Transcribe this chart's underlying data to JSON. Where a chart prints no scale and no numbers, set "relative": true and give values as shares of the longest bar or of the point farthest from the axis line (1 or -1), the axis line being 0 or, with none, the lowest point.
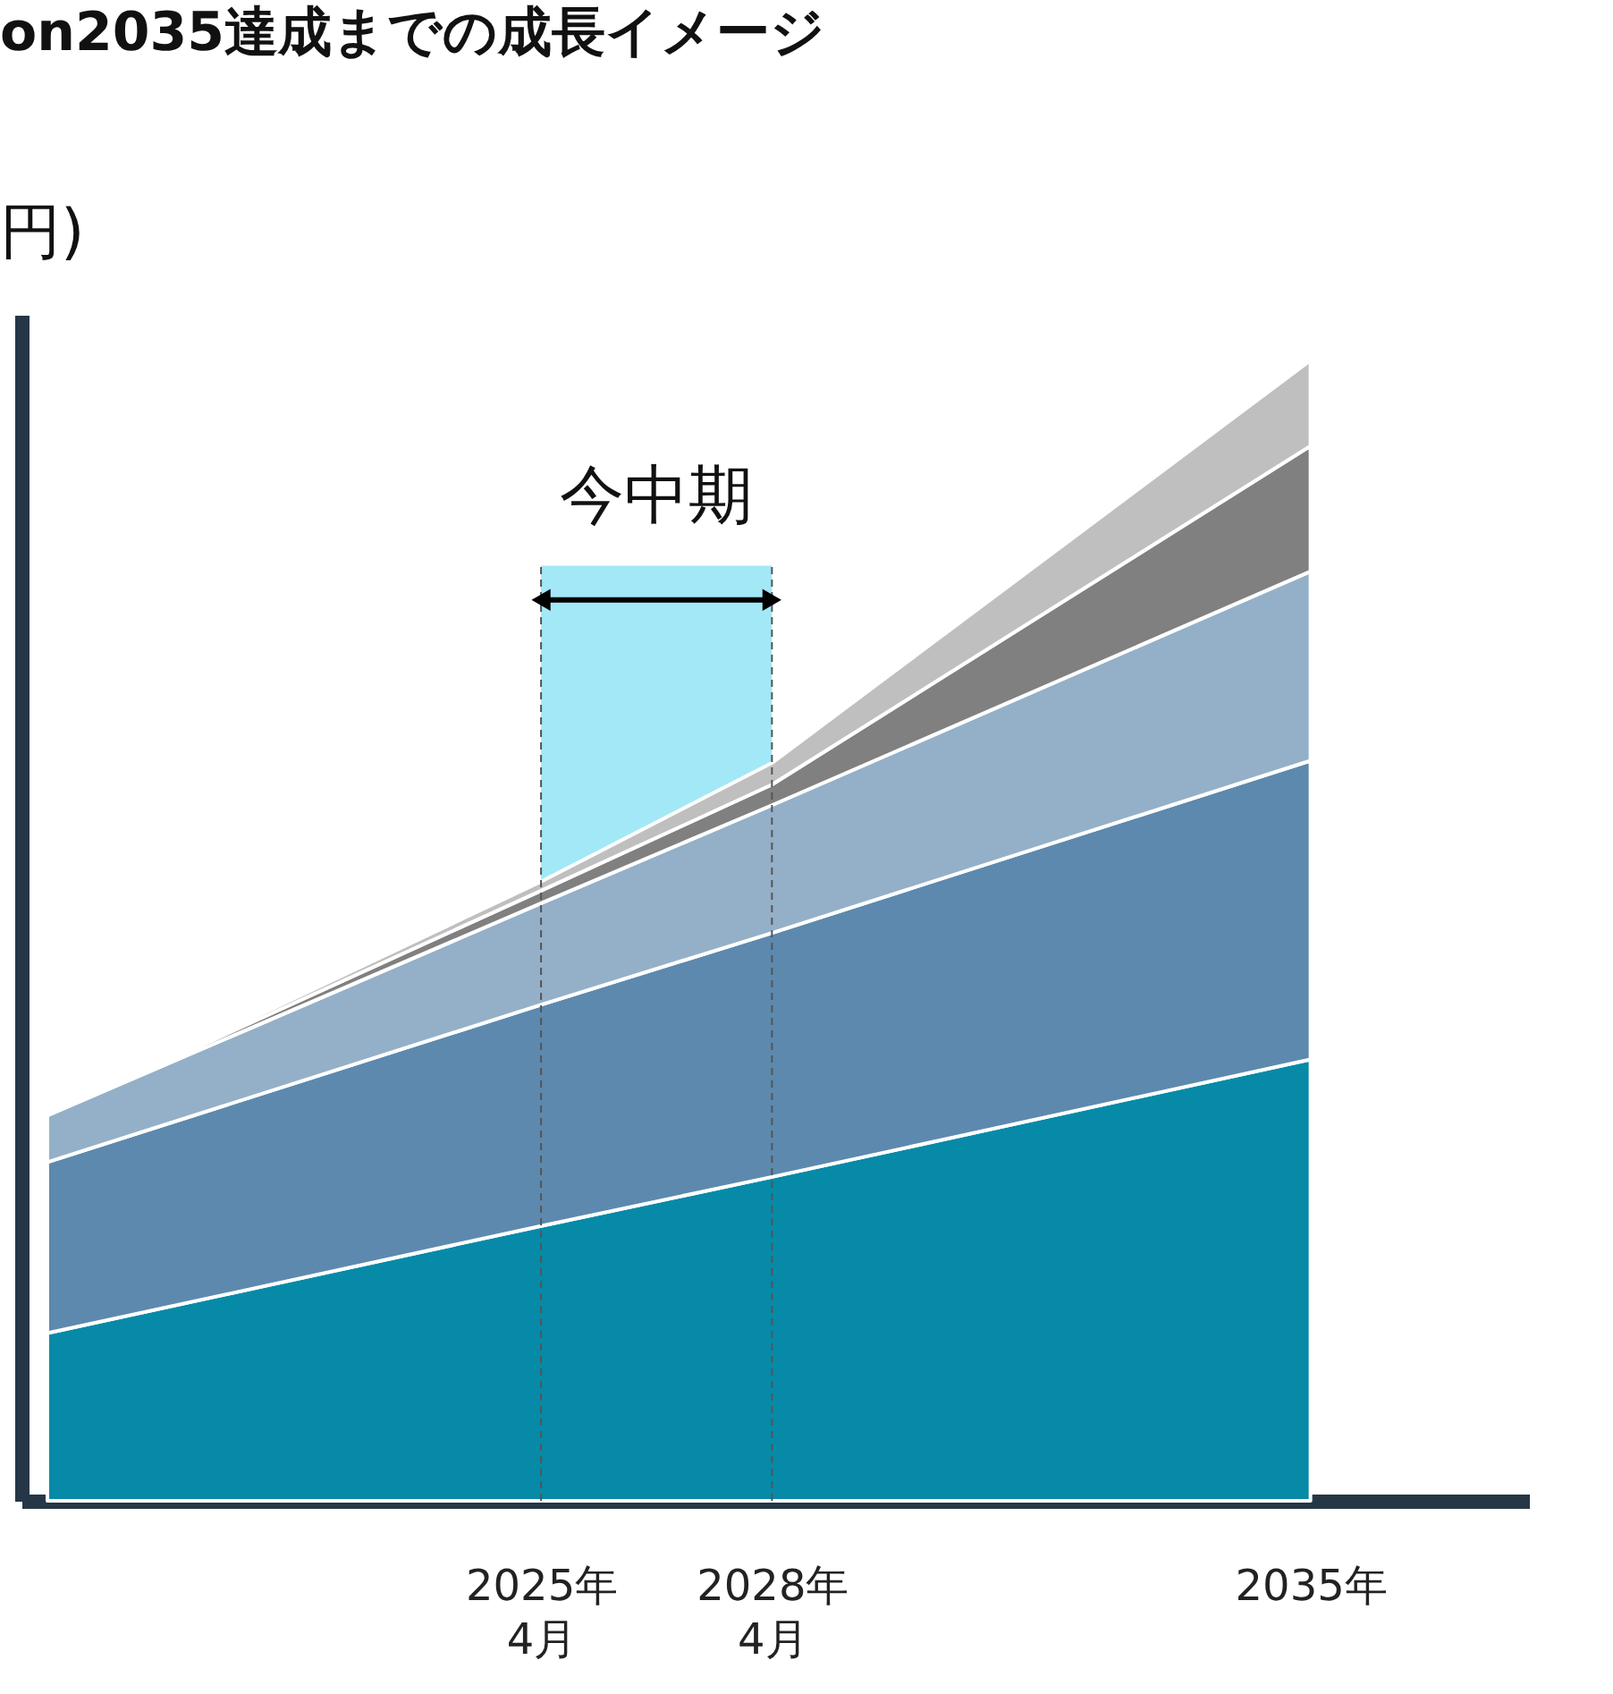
{
  "chart_data": {
    "type": "area",
    "title": "on2035達成までの成長イメージ",
    "ylabel": "円)",
    "stacked": true,
    "relative": true,
    "x": [
      "2018-11",
      "2025-04",
      "2028-04",
      "2035-04"
    ],
    "xlim": [
      "2018-07",
      "2038-02"
    ],
    "xticks": [
      {
        "value": "2025-04",
        "label": "2025年\n4月"
      },
      {
        "value": "2028-04",
        "label": "2028年\n4月"
      },
      {
        "value": "2035-04",
        "label": "2035年"
      }
    ],
    "series": [
      {
        "color": "#068aa8",
        "values": [
          0.147,
          0.241,
          0.284,
          0.387
        ]
      },
      {
        "color": "#5d89ae",
        "values": [
          0.15,
          0.194,
          0.214,
          0.262
        ]
      },
      {
        "color": "#94b0c8",
        "values": [
          0.041,
          0.089,
          0.112,
          0.166
        ]
      },
      {
        "color": "#808080",
        "values": [
          0,
          0.011,
          0.018,
          0.11
        ]
      },
      {
        "color": "#bfbfbf",
        "values": [
          0,
          0.008,
          0.019,
          0.075
        ]
      }
    ],
    "bands": [
      {
        "axis": "x",
        "from": "2025-04",
        "to": "2028-04",
        "label": "今中期",
        "color": "#33ccee"
      }
    ]
  }
}
